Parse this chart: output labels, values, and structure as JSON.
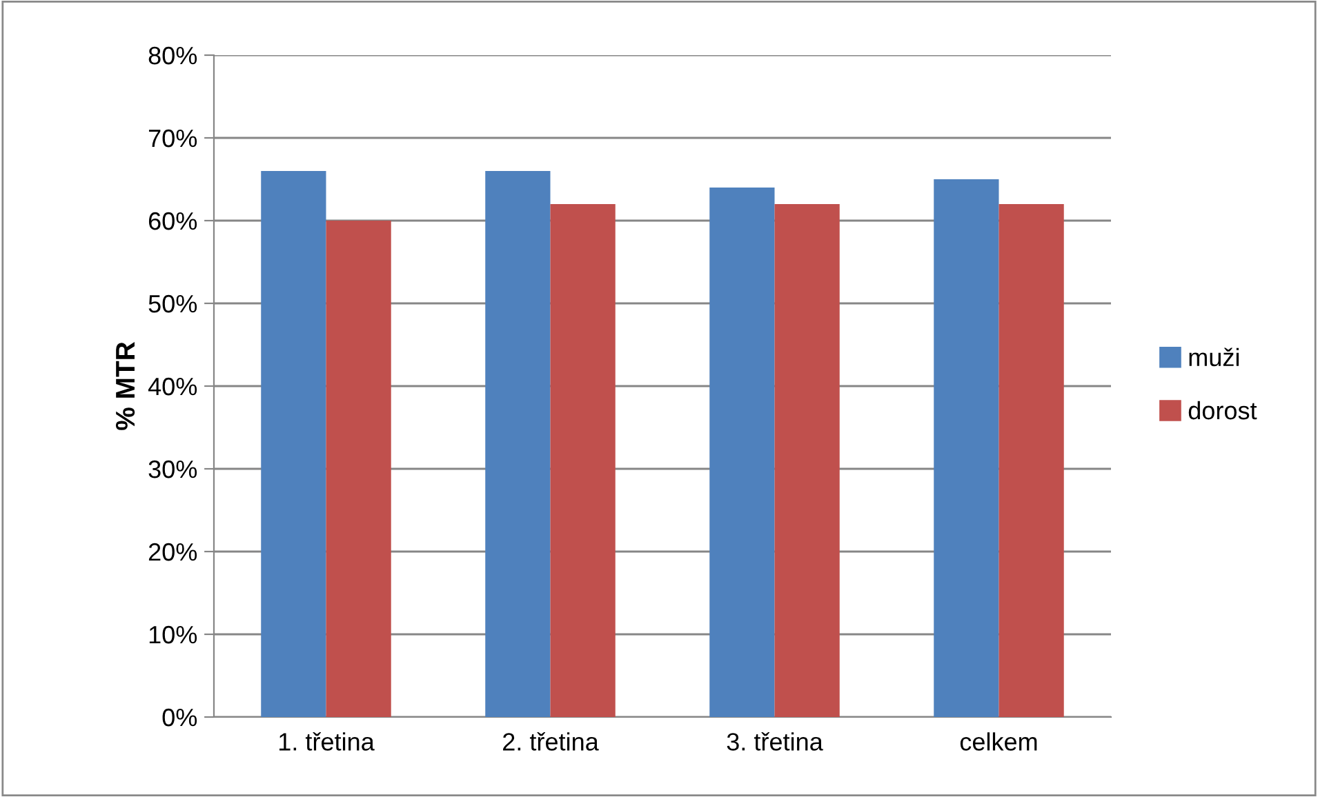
{
  "chart_data": {
    "type": "bar",
    "ylabel": "% MTR",
    "categories": [
      "1. třetina",
      "2. třetina",
      "3. třetina",
      "celkem"
    ],
    "series": [
      {
        "name": "muži",
        "color": "#4f81bd",
        "values": [
          66,
          66,
          64,
          65
        ]
      },
      {
        "name": "dorost",
        "color": "#c0504d",
        "values": [
          60,
          62,
          62,
          62
        ]
      }
    ],
    "ylim": [
      0,
      80
    ],
    "yticks": [
      {
        "value": 0,
        "label": "0%"
      },
      {
        "value": 10,
        "label": "10%"
      },
      {
        "value": 20,
        "label": "20%"
      },
      {
        "value": 30,
        "label": "30%"
      },
      {
        "value": 40,
        "label": "40%"
      },
      {
        "value": 50,
        "label": "50%"
      },
      {
        "value": 60,
        "label": "60%"
      },
      {
        "value": 70,
        "label": "70%"
      },
      {
        "value": 80,
        "label": "80%"
      }
    ],
    "grid": "y",
    "legend": "right"
  }
}
